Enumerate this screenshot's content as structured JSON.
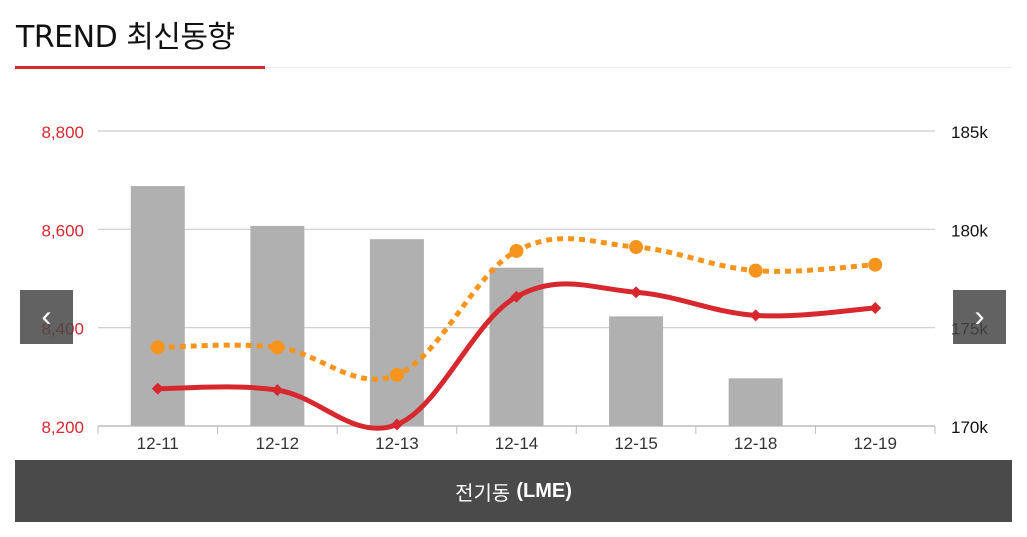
{
  "header": {
    "title": "TREND 최신동향"
  },
  "nav": {
    "prev": "‹",
    "next": "›"
  },
  "caption": {
    "label": "전기동",
    "symbol": "(LME)"
  },
  "colors": {
    "accent": "#d7282f",
    "orange": "#f7941d",
    "bar": "#b0b0b0",
    "caption_bg": "#4a4a4a"
  },
  "chart_data": {
    "type": "bar+line",
    "categories": [
      "12-11",
      "12-12",
      "12-13",
      "12-14",
      "12-15",
      "12-18",
      "12-19"
    ],
    "left_axis": {
      "ticks": [
        "8,800",
        "8,600",
        "8,400",
        "8,200"
      ],
      "ylim": [
        8200,
        8800
      ]
    },
    "right_axis": {
      "ticks": [
        "185k",
        "180k",
        "175k",
        "170k"
      ],
      "ylim": [
        170000,
        185000
      ]
    },
    "series": [
      {
        "kind": "bar",
        "axis": "left",
        "values": [
          8688,
          8607,
          8580,
          8522,
          8423,
          8297,
          null
        ]
      },
      {
        "kind": "line",
        "axis": "left",
        "style": "solid",
        "values": [
          8276,
          8273,
          8203,
          8463,
          8472,
          8425,
          8440
        ]
      },
      {
        "kind": "line",
        "axis": "right",
        "style": "dotted",
        "values": [
          174000,
          174000,
          172600,
          178900,
          179100,
          177900,
          178200
        ]
      }
    ],
    "grid": true,
    "legend": "none"
  }
}
